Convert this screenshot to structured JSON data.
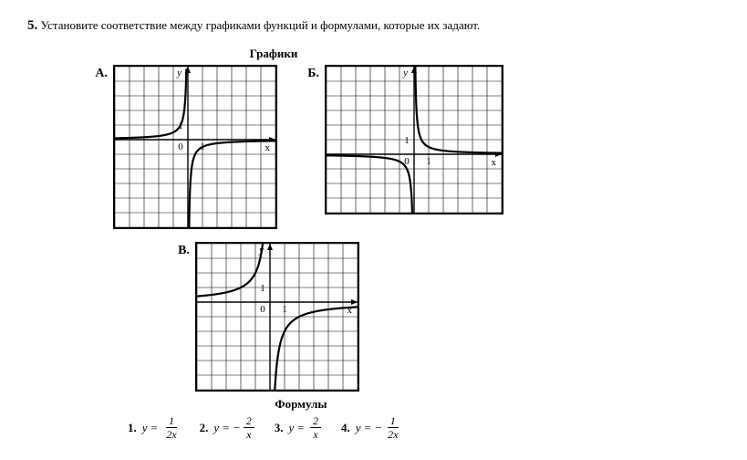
{
  "problem": {
    "number": "5.",
    "text": "Установите соответствие между графиками функций и формулами, которые их задают."
  },
  "sections": {
    "charts_title": "Графики",
    "formulas_title": "Формулы"
  },
  "grid": {
    "cell": 16,
    "cols_A": 11,
    "rows_A": 11,
    "cols_B": 12,
    "rows_B": 10,
    "cols_V": 11,
    "rows_V": 10,
    "grid_color": "#000000",
    "grid_stroke": 0.6,
    "curve_stroke": 2.2,
    "curve_color": "#000000",
    "bg": "#ffffff"
  },
  "charts": {
    "A": {
      "label": "А.",
      "origin_col": 5,
      "origin_row": 5,
      "xlabel": "x",
      "ylabel": "y",
      "tick_label_1y": "1",
      "tick_label_0": "0",
      "tick_label_1x": "1",
      "func": "neg_half_over_x"
    },
    "B": {
      "label": "Б.",
      "origin_col": 6,
      "origin_row": 6,
      "xlabel": "x",
      "ylabel": "y",
      "tick_label_1y": "1",
      "tick_label_0": "0",
      "tick_label_1x": "1",
      "func": "half_over_x"
    },
    "V": {
      "label": "В.",
      "origin_col": 5,
      "origin_row": 4,
      "xlabel": "x",
      "ylabel": "y",
      "tick_label_1y": "1",
      "tick_label_0": "0",
      "tick_label_1x": "1",
      "func": "neg_two_over_x"
    }
  },
  "formulas": [
    {
      "num": "1.",
      "lhs": "y",
      "eq": "=",
      "sign": "",
      "numerator": "1",
      "denominator": "2x"
    },
    {
      "num": "2.",
      "lhs": "y",
      "eq": "=",
      "sign": "−",
      "numerator": "2",
      "denominator": "x"
    },
    {
      "num": "3.",
      "lhs": "y",
      "eq": "=",
      "sign": "",
      "numerator": "2",
      "denominator": "x"
    },
    {
      "num": "4.",
      "lhs": "y",
      "eq": "=",
      "sign": "−",
      "numerator": "1",
      "denominator": "2x"
    }
  ]
}
